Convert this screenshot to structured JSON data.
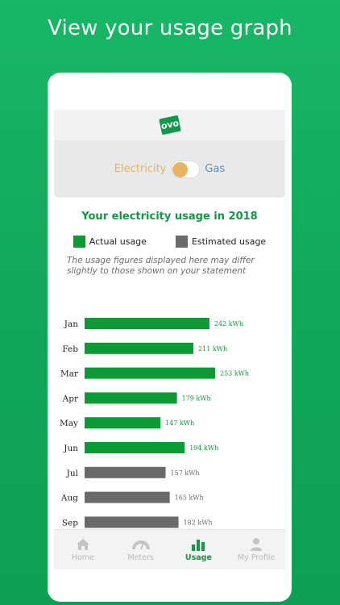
{
  "headline": "View your usage graph",
  "logo_text": "ovo",
  "toggle": {
    "left_label": "Electricity",
    "right_label": "Gas",
    "selected": "Electricity"
  },
  "usage_title": "Your electricity usage in 2018",
  "legend": {
    "actual": "Actual usage",
    "estimated": "Estimated usage"
  },
  "note": "The usage figures displayed here may differ slightly to those shown on your statement",
  "colors": {
    "actual": "#0c9a35",
    "estimated": "#6a6a6a",
    "brand": "#0f9a44"
  },
  "chart_data": {
    "type": "bar",
    "orientation": "horizontal",
    "unit": "kWh",
    "categories": [
      "Jan",
      "Feb",
      "Mar",
      "Apr",
      "May",
      "Jun",
      "Jul",
      "Aug",
      "Sep"
    ],
    "values": [
      242,
      211,
      253,
      179,
      147,
      194,
      157,
      165,
      182
    ],
    "value_labels": [
      "242 kWh",
      "211 kWh",
      "253 kWh",
      "179 kWh",
      "147 kWh",
      "194 kWh",
      "157 kWh",
      "165 kWh",
      "182 kWh"
    ],
    "status": [
      "actual",
      "actual",
      "actual",
      "actual",
      "actual",
      "actual",
      "estimated",
      "estimated",
      "estimated"
    ],
    "xlim": [
      0,
      253
    ]
  },
  "tabs": [
    {
      "label": "Home",
      "icon": "home-icon",
      "active": false
    },
    {
      "label": "Meters",
      "icon": "meter-icon",
      "active": false
    },
    {
      "label": "Usage",
      "icon": "bar-chart-icon",
      "active": true
    },
    {
      "label": "My Profile",
      "icon": "profile-icon",
      "active": false
    }
  ]
}
